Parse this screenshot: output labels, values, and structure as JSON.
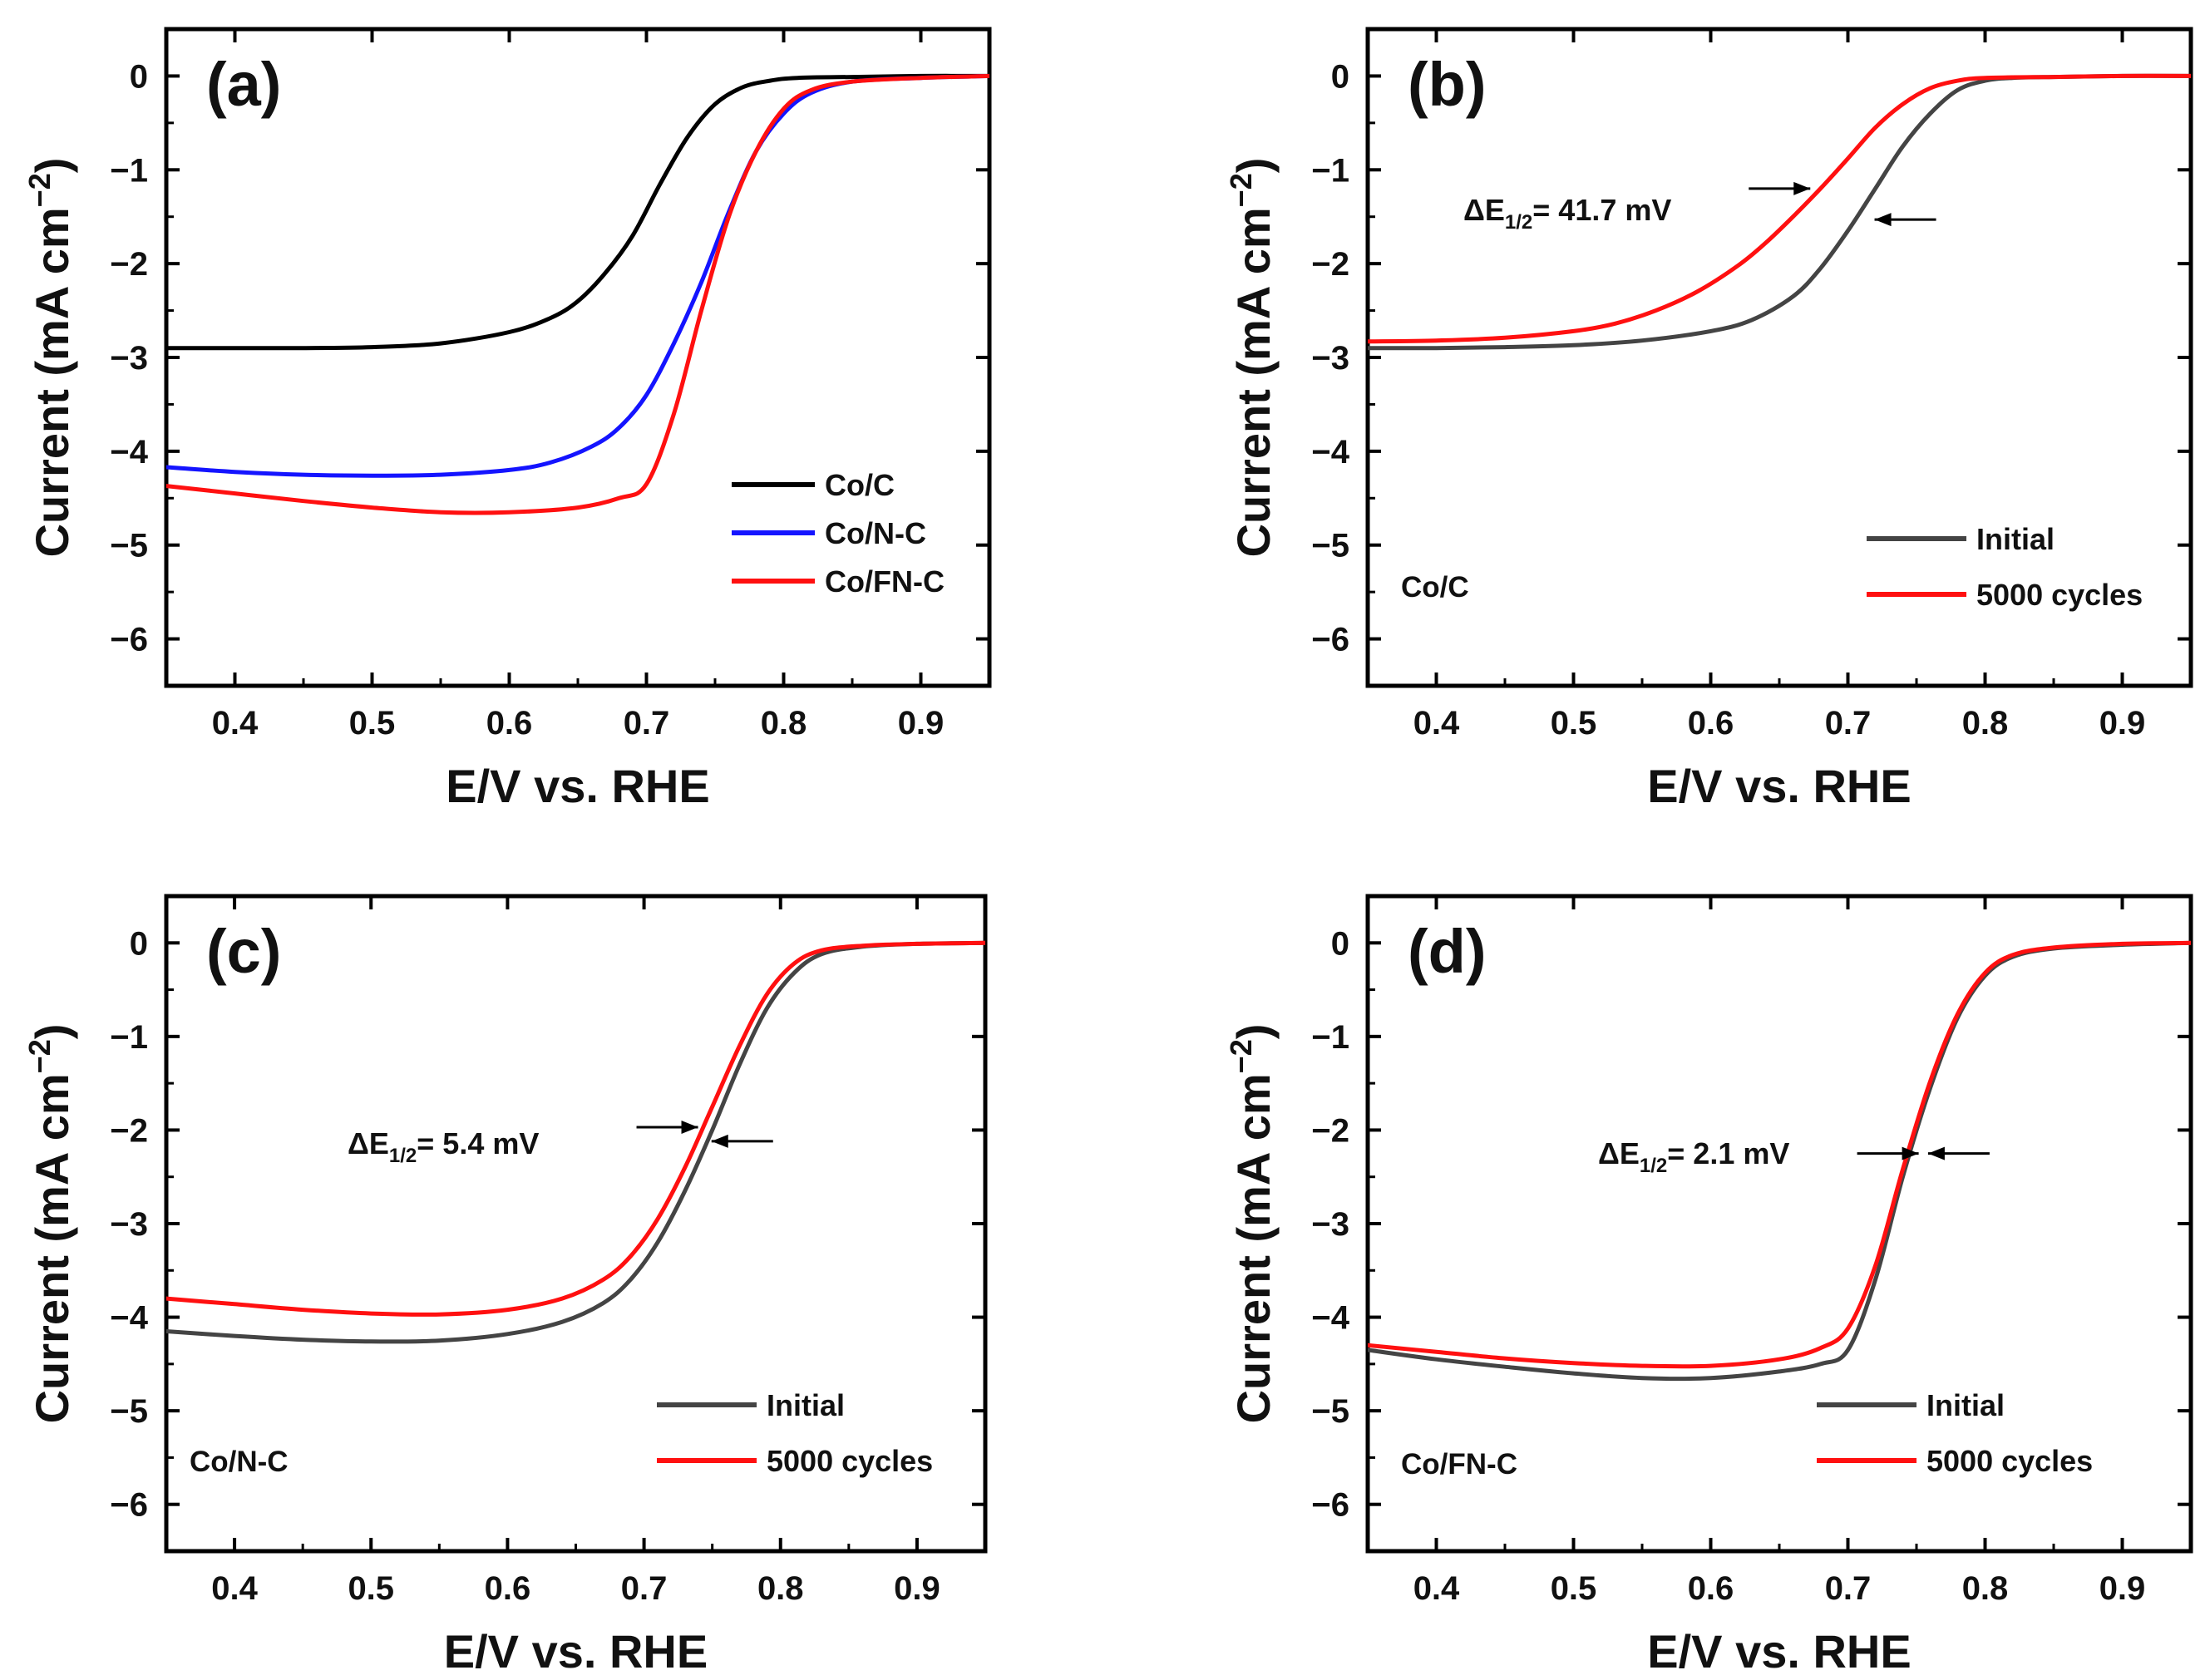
{
  "figure": {
    "colors": {
      "Co/C": "#000000",
      "Co/N-C": "#1414ff",
      "Co/FN-C": "#ff1010",
      "Initial": "#444444",
      "5000 cycles": "#ff1010",
      "axis": "#000000"
    }
  },
  "chart_data": [
    {
      "id": "a",
      "type": "line",
      "panel_label": "(a)",
      "xlabel": "E/V vs. RHE",
      "ylabel_main": "Current (mA cm",
      "ylabel_sup": "−2",
      "ylabel_close": ")",
      "xlim": [
        0.35,
        0.95
      ],
      "ylim": [
        -6.5,
        0.5
      ],
      "xticks": [
        0.4,
        0.5,
        0.6,
        0.7,
        0.8,
        0.9
      ],
      "xtick_labels": [
        "0.4",
        "0.5",
        "0.6",
        "0.7",
        "0.8",
        "0.9"
      ],
      "yticks": [
        0,
        -1,
        -2,
        -3,
        -4,
        -5,
        -6
      ],
      "ytick_labels": [
        "0",
        "−1",
        "−2",
        "−3",
        "−4",
        "−5",
        "−6"
      ],
      "legend_position": "bottom-right",
      "series": [
        {
          "name": "Co/C",
          "x": [
            0.35,
            0.4,
            0.45,
            0.5,
            0.55,
            0.6,
            0.63,
            0.65,
            0.67,
            0.69,
            0.71,
            0.73,
            0.75,
            0.77,
            0.79,
            0.81,
            0.85,
            0.9,
            0.95
          ],
          "y": [
            -2.9,
            -2.9,
            -2.9,
            -2.89,
            -2.85,
            -2.73,
            -2.58,
            -2.4,
            -2.1,
            -1.7,
            -1.15,
            -0.65,
            -0.3,
            -0.12,
            -0.05,
            -0.02,
            -0.01,
            0.0,
            0.0
          ]
        },
        {
          "name": "Co/N-C",
          "x": [
            0.35,
            0.4,
            0.45,
            0.5,
            0.55,
            0.6,
            0.63,
            0.66,
            0.68,
            0.7,
            0.72,
            0.74,
            0.76,
            0.78,
            0.8,
            0.82,
            0.85,
            0.9,
            0.95
          ],
          "y": [
            -4.17,
            -4.22,
            -4.25,
            -4.26,
            -4.25,
            -4.2,
            -4.12,
            -3.95,
            -3.75,
            -3.4,
            -2.85,
            -2.2,
            -1.45,
            -0.8,
            -0.4,
            -0.18,
            -0.06,
            -0.02,
            0.0
          ]
        },
        {
          "name": "Co/FN-C",
          "x": [
            0.35,
            0.4,
            0.45,
            0.5,
            0.55,
            0.6,
            0.65,
            0.68,
            0.7,
            0.72,
            0.74,
            0.76,
            0.78,
            0.8,
            0.82,
            0.85,
            0.9,
            0.95
          ],
          "y": [
            -4.37,
            -4.45,
            -4.53,
            -4.6,
            -4.65,
            -4.65,
            -4.6,
            -4.5,
            -4.35,
            -3.6,
            -2.5,
            -1.5,
            -0.8,
            -0.35,
            -0.15,
            -0.06,
            -0.02,
            0.0
          ]
        }
      ],
      "legend": [
        "Co/C",
        "Co/N-C",
        "Co/FN-C"
      ]
    },
    {
      "id": "b",
      "type": "line",
      "panel_label": "(b)",
      "sample_label": "Co/C",
      "xlabel": "E/V vs. RHE",
      "ylabel_main": "Current (mA cm",
      "ylabel_sup": "−2",
      "ylabel_close": ")",
      "xlim": [
        0.35,
        0.95
      ],
      "ylim": [
        -6.5,
        0.5
      ],
      "xticks": [
        0.4,
        0.5,
        0.6,
        0.7,
        0.8,
        0.9
      ],
      "xtick_labels": [
        "0.4",
        "0.5",
        "0.6",
        "0.7",
        "0.8",
        "0.9"
      ],
      "yticks": [
        0,
        -1,
        -2,
        -3,
        -4,
        -5,
        -6
      ],
      "ytick_labels": [
        "0",
        "−1",
        "−2",
        "−3",
        "−4",
        "−5",
        "−6"
      ],
      "legend_position": "bottom-right",
      "annotation": {
        "prefix": "ΔE",
        "subscript": "1/2",
        "suffix": "= 41.7 mV",
        "arrow_left_x": 0.675,
        "arrow_right_x": 0.717,
        "arrow_left_y": -1.2,
        "arrow_right_y": -1.53
      },
      "series": [
        {
          "name": "Initial",
          "x": [
            0.35,
            0.4,
            0.45,
            0.5,
            0.55,
            0.6,
            0.63,
            0.66,
            0.68,
            0.7,
            0.72,
            0.74,
            0.76,
            0.78,
            0.8,
            0.82,
            0.85,
            0.9,
            0.95
          ],
          "y": [
            -2.9,
            -2.9,
            -2.89,
            -2.87,
            -2.82,
            -2.72,
            -2.6,
            -2.35,
            -2.05,
            -1.65,
            -1.2,
            -0.75,
            -0.4,
            -0.15,
            -0.05,
            -0.02,
            -0.01,
            0.0,
            0.0
          ]
        },
        {
          "name": "5000 cycles",
          "x": [
            0.35,
            0.4,
            0.45,
            0.5,
            0.53,
            0.56,
            0.59,
            0.62,
            0.64,
            0.66,
            0.68,
            0.7,
            0.72,
            0.74,
            0.76,
            0.78,
            0.8,
            0.85,
            0.9,
            0.95
          ],
          "y": [
            -2.83,
            -2.82,
            -2.79,
            -2.72,
            -2.64,
            -2.5,
            -2.3,
            -2.02,
            -1.78,
            -1.5,
            -1.2,
            -0.88,
            -0.55,
            -0.3,
            -0.13,
            -0.05,
            -0.02,
            -0.01,
            0.0,
            0.0
          ]
        }
      ],
      "legend": [
        "Initial",
        "5000 cycles"
      ]
    },
    {
      "id": "c",
      "type": "line",
      "panel_label": "(c)",
      "sample_label": "Co/N-C",
      "xlabel": "E/V vs. RHE",
      "ylabel_main": "Current (mA cm",
      "ylabel_sup": "−2",
      "ylabel_close": ")",
      "xlim": [
        0.35,
        0.95
      ],
      "ylim": [
        -6.5,
        0.5
      ],
      "xticks": [
        0.4,
        0.5,
        0.6,
        0.7,
        0.8,
        0.9
      ],
      "xtick_labels": [
        "0.4",
        "0.5",
        "0.6",
        "0.7",
        "0.8",
        "0.9"
      ],
      "yticks": [
        0,
        -1,
        -2,
        -3,
        -4,
        -5,
        -6
      ],
      "ytick_labels": [
        "0",
        "−1",
        "−2",
        "−3",
        "−4",
        "−5",
        "−6"
      ],
      "legend_position": "bottom-right",
      "annotation": {
        "prefix": "ΔE",
        "subscript": "1/2",
        "suffix": "= 5.4 mV",
        "arrow_left_x": 0.742,
        "arrow_right_x": 0.747,
        "arrow_left_y": -1.97,
        "arrow_right_y": -2.12
      },
      "series": [
        {
          "name": "Initial",
          "x": [
            0.35,
            0.4,
            0.45,
            0.5,
            0.55,
            0.6,
            0.64,
            0.67,
            0.69,
            0.71,
            0.73,
            0.75,
            0.77,
            0.79,
            0.81,
            0.83,
            0.86,
            0.9,
            0.95
          ],
          "y": [
            -4.15,
            -4.2,
            -4.24,
            -4.26,
            -4.25,
            -4.18,
            -4.05,
            -3.85,
            -3.6,
            -3.2,
            -2.65,
            -2.0,
            -1.3,
            -0.7,
            -0.32,
            -0.12,
            -0.04,
            -0.01,
            0.0
          ]
        },
        {
          "name": "5000 cycles",
          "x": [
            0.35,
            0.4,
            0.45,
            0.5,
            0.55,
            0.6,
            0.64,
            0.67,
            0.69,
            0.71,
            0.73,
            0.75,
            0.77,
            0.79,
            0.81,
            0.83,
            0.86,
            0.9,
            0.95
          ],
          "y": [
            -3.8,
            -3.86,
            -3.92,
            -3.96,
            -3.97,
            -3.92,
            -3.8,
            -3.6,
            -3.35,
            -2.95,
            -2.4,
            -1.75,
            -1.1,
            -0.55,
            -0.22,
            -0.08,
            -0.03,
            -0.01,
            0.0
          ]
        }
      ],
      "legend": [
        "Initial",
        "5000 cycles"
      ]
    },
    {
      "id": "d",
      "type": "line",
      "panel_label": "(d)",
      "sample_label": "Co/FN-C",
      "xlabel": "E/V vs. RHE",
      "ylabel_main": "Current (mA cm",
      "ylabel_sup": "−2",
      "ylabel_close": ")",
      "xlim": [
        0.35,
        0.95
      ],
      "ylim": [
        -6.5,
        0.5
      ],
      "xticks": [
        0.4,
        0.5,
        0.6,
        0.7,
        0.8,
        0.9
      ],
      "xtick_labels": [
        "0.4",
        "0.5",
        "0.6",
        "0.7",
        "0.8",
        "0.9"
      ],
      "yticks": [
        0,
        -1,
        -2,
        -3,
        -4,
        -5,
        -6
      ],
      "ytick_labels": [
        "0",
        "−1",
        "−2",
        "−3",
        "−4",
        "−5",
        "−6"
      ],
      "legend_position": "bottom-right",
      "annotation": {
        "prefix": "ΔE",
        "subscript": "1/2",
        "suffix": "= 2.1 mV",
        "arrow_left_x": 0.754,
        "arrow_right_x": 0.756,
        "arrow_left_y": -2.25,
        "arrow_right_y": -2.25
      },
      "series": [
        {
          "name": "Initial",
          "x": [
            0.35,
            0.4,
            0.45,
            0.5,
            0.55,
            0.6,
            0.65,
            0.68,
            0.7,
            0.72,
            0.74,
            0.76,
            0.78,
            0.8,
            0.82,
            0.85,
            0.9,
            0.95
          ],
          "y": [
            -4.35,
            -4.45,
            -4.53,
            -4.6,
            -4.65,
            -4.65,
            -4.58,
            -4.5,
            -4.35,
            -3.6,
            -2.5,
            -1.55,
            -0.8,
            -0.35,
            -0.15,
            -0.06,
            -0.02,
            0.0
          ]
        },
        {
          "name": "5000 cycles",
          "x": [
            0.35,
            0.4,
            0.45,
            0.5,
            0.55,
            0.6,
            0.65,
            0.68,
            0.7,
            0.72,
            0.74,
            0.76,
            0.78,
            0.8,
            0.82,
            0.85,
            0.9,
            0.95
          ],
          "y": [
            -4.3,
            -4.37,
            -4.44,
            -4.49,
            -4.52,
            -4.52,
            -4.45,
            -4.33,
            -4.12,
            -3.45,
            -2.42,
            -1.48,
            -0.76,
            -0.32,
            -0.13,
            -0.05,
            -0.01,
            0.0
          ]
        }
      ],
      "legend": [
        "Initial",
        "5000 cycles"
      ]
    }
  ]
}
